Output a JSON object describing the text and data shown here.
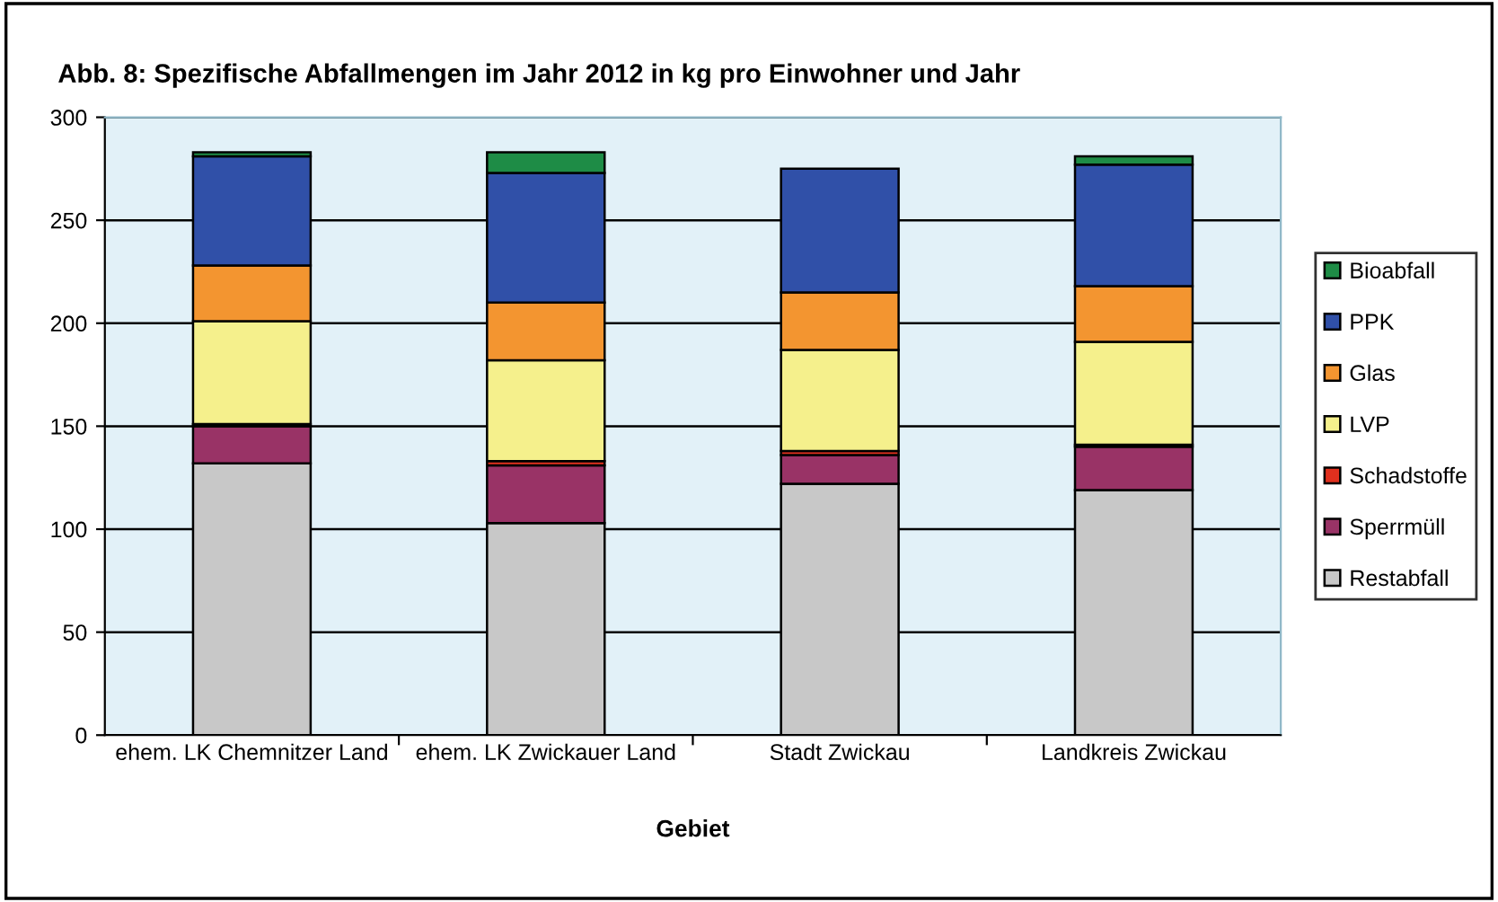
{
  "chart_data": {
    "type": "bar",
    "stacked": true,
    "title": "Abb. 8: Spezifische Abfallmengen im Jahr 2012 in kg pro Einwohner und Jahr",
    "xlabel": "Gebiet",
    "categories": [
      "ehem. LK Chemnitzer Land",
      "ehem. LK Zwickauer Land",
      "Stadt Zwickau",
      "Landkreis Zwickau"
    ],
    "series": [
      {
        "name": "Restabfall",
        "color": "#c8c8c8",
        "values": [
          132,
          103,
          122,
          119
        ]
      },
      {
        "name": "Sperrmüll",
        "color": "#993366",
        "values": [
          18,
          28,
          14,
          21
        ]
      },
      {
        "name": "Schadstoffe",
        "color": "#e0301e",
        "values": [
          1,
          2,
          2,
          1
        ]
      },
      {
        "name": "LVP",
        "color": "#f5f08c",
        "values": [
          50,
          49,
          49,
          50
        ]
      },
      {
        "name": "Glas",
        "color": "#f39530",
        "values": [
          27,
          28,
          28,
          27
        ]
      },
      {
        "name": "PPK",
        "color": "#3050a8",
        "values": [
          53,
          63,
          60,
          59
        ]
      },
      {
        "name": "Bioabfall",
        "color": "#1e8c46",
        "values": [
          2,
          10,
          null,
          4
        ]
      }
    ],
    "ylim": [
      0,
      300
    ],
    "yticks": [
      0,
      50,
      100,
      150,
      200,
      250,
      300
    ],
    "grid": "y",
    "legend": "right"
  }
}
